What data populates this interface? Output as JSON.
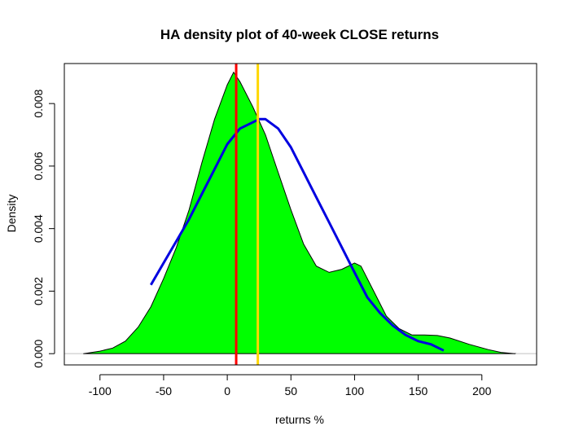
{
  "chart_data": {
    "type": "area",
    "title": "HA density plot of 40-week CLOSE returns",
    "xlabel": "returns %",
    "ylabel": "Density",
    "xlim": [
      -128,
      243
    ],
    "ylim": [
      -0.00036,
      0.00928
    ],
    "x_ticks": [
      -100,
      -50,
      0,
      50,
      100,
      150,
      200
    ],
    "y_ticks": [
      0.0,
      0.002,
      0.004,
      0.006,
      0.008
    ],
    "x_tick_labels": [
      "-100",
      "-50",
      "0",
      "50",
      "100",
      "150",
      "200"
    ],
    "y_tick_labels": [
      "0.000",
      "0.002",
      "0.004",
      "0.006",
      "0.008"
    ],
    "grid": false,
    "baseline_y": 0,
    "series": [
      {
        "kind": "density-fill",
        "fill": "#00ff00",
        "stroke": "#000000",
        "points": [
          [
            -113,
            0.0
          ],
          [
            -100,
            8e-05
          ],
          [
            -90,
            0.00018
          ],
          [
            -80,
            0.0004
          ],
          [
            -70,
            0.00085
          ],
          [
            -60,
            0.0015
          ],
          [
            -50,
            0.0024
          ],
          [
            -40,
            0.0034
          ],
          [
            -30,
            0.0046
          ],
          [
            -20,
            0.0061
          ],
          [
            -10,
            0.0075
          ],
          [
            0,
            0.0086
          ],
          [
            5,
            0.009
          ],
          [
            10,
            0.0087
          ],
          [
            20,
            0.0079
          ],
          [
            30,
            0.007
          ],
          [
            40,
            0.0058
          ],
          [
            50,
            0.0046
          ],
          [
            60,
            0.0035
          ],
          [
            70,
            0.0028
          ],
          [
            80,
            0.0026
          ],
          [
            90,
            0.0027
          ],
          [
            100,
            0.0029
          ],
          [
            105,
            0.0028
          ],
          [
            115,
            0.002
          ],
          [
            125,
            0.0012
          ],
          [
            135,
            0.0008
          ],
          [
            145,
            0.0006
          ],
          [
            155,
            0.0006
          ],
          [
            165,
            0.00058
          ],
          [
            175,
            0.0005
          ],
          [
            190,
            0.0003
          ],
          [
            205,
            0.00013
          ],
          [
            215,
            4e-05
          ],
          [
            226,
            0.0
          ]
        ]
      },
      {
        "kind": "fit-line",
        "stroke": "#0000e0",
        "points": [
          [
            -60,
            0.0022
          ],
          [
            -50,
            0.0029
          ],
          [
            -40,
            0.0036
          ],
          [
            -30,
            0.0043
          ],
          [
            -20,
            0.0051
          ],
          [
            -10,
            0.0059
          ],
          [
            0,
            0.0067
          ],
          [
            10,
            0.0072
          ],
          [
            20,
            0.0074
          ],
          [
            25,
            0.0075
          ],
          [
            30,
            0.0075
          ],
          [
            40,
            0.0072
          ],
          [
            50,
            0.0066
          ],
          [
            60,
            0.0058
          ],
          [
            70,
            0.005
          ],
          [
            80,
            0.0042
          ],
          [
            90,
            0.0034
          ],
          [
            100,
            0.0026
          ],
          [
            110,
            0.0018
          ],
          [
            120,
            0.0013
          ],
          [
            130,
            0.0009
          ],
          [
            140,
            0.0006
          ],
          [
            150,
            0.0004
          ],
          [
            160,
            0.0003
          ],
          [
            170,
            0.0001
          ]
        ]
      }
    ],
    "vlines": [
      {
        "x": 7,
        "color": "#ff0000"
      },
      {
        "x": 24,
        "color": "#ffd700"
      }
    ]
  }
}
